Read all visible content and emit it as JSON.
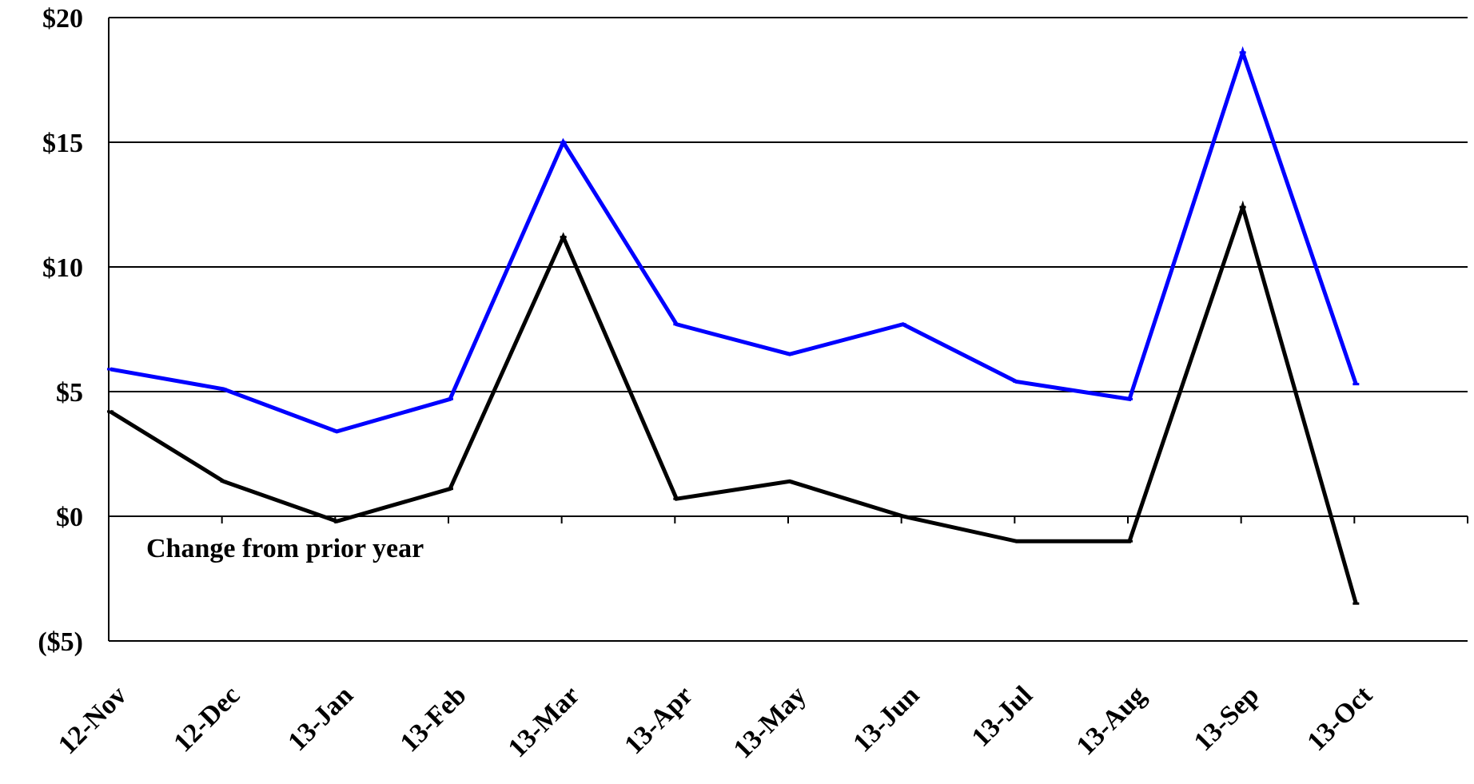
{
  "chart_data": {
    "type": "line",
    "categories": [
      "12-Nov",
      "12-Dec",
      "13-Jan",
      "13-Feb",
      "13-Mar",
      "13-Apr",
      "13-May",
      "13-Jun",
      "13-Jul",
      "13-Aug",
      "13-Sep",
      "13-Oct"
    ],
    "series": [
      {
        "color": "#0000ff",
        "values": [
          5.9,
          5.1,
          3.4,
          4.7,
          15.0,
          7.7,
          6.5,
          7.7,
          5.4,
          4.7,
          18.6,
          5.3
        ]
      },
      {
        "color": "#000000",
        "values": [
          4.2,
          1.4,
          -0.2,
          1.1,
          11.2,
          0.7,
          1.4,
          0.0,
          -1.0,
          -1.0,
          12.4,
          -3.5
        ]
      }
    ],
    "ylim": [
      -5,
      20
    ],
    "yticks": [
      20,
      15,
      10,
      5,
      0,
      -5
    ],
    "ytick_labels": [
      "$20",
      "$15",
      "$10",
      "$5",
      "$0",
      "($5)"
    ],
    "annotations": [
      {
        "text": "Change from prior year"
      }
    ],
    "grid": true,
    "legend": "none"
  }
}
